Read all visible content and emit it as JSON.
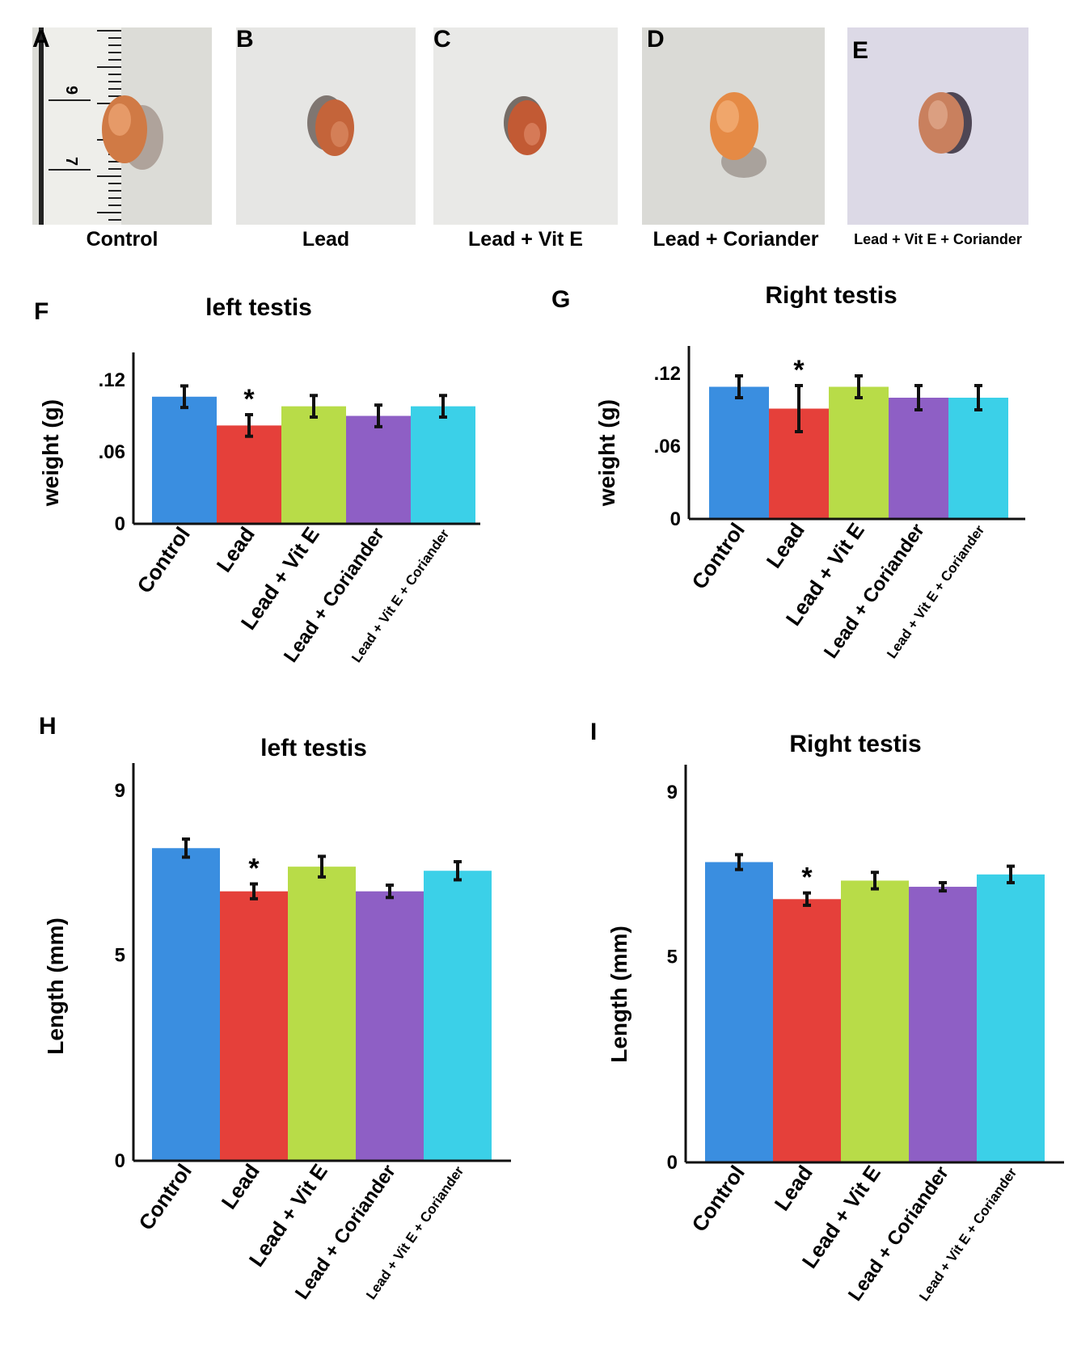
{
  "photos": [
    {
      "letter": "A",
      "caption": "Control",
      "bg": "#dcdcd7",
      "ruler_labels": [
        "9",
        "7"
      ]
    },
    {
      "letter": "B",
      "caption": "Lead",
      "bg": "#e6e6e4"
    },
    {
      "letter": "C",
      "caption": "Lead + Vit E",
      "bg": "#e9e9e7"
    },
    {
      "letter": "D",
      "caption": "Lead + Coriander",
      "bg": "#dadad6"
    },
    {
      "letter": "E",
      "caption": "Lead + Vit E + Coriander",
      "bg": "#dcd9e6"
    }
  ],
  "series_colors": [
    "#3a8ee0",
    "#e5403a",
    "#b8dc48",
    "#8e5fc5",
    "#3bd0e8"
  ],
  "chart_data": [
    {
      "panel": "F",
      "type": "bar",
      "title": "left testis",
      "ylabel": "weight (g)",
      "categories": [
        "Control",
        "Lead",
        "Lead + Vit E",
        "Lead + Coriander",
        "Lead + Vit E + Coriander"
      ],
      "values": [
        0.106,
        0.082,
        0.098,
        0.09,
        0.098
      ],
      "errors": [
        0.009,
        0.009,
        0.009,
        0.009,
        0.009
      ],
      "significant": [
        false,
        true,
        false,
        false,
        false
      ],
      "ylim": [
        0,
        0.12
      ],
      "ticks": [
        ".12",
        ".06",
        "0"
      ],
      "tick_values": [
        0.12,
        0.06,
        0
      ]
    },
    {
      "panel": "G",
      "type": "bar",
      "title": "Right testis",
      "ylabel": "weight (g)",
      "categories": [
        "Control",
        "Lead",
        "Lead + Vit E",
        "Lead + Coriander",
        "Lead + Vit E + Coriander"
      ],
      "values": [
        0.109,
        0.091,
        0.109,
        0.1,
        0.1
      ],
      "errors": [
        0.009,
        0.019,
        0.009,
        0.01,
        0.01
      ],
      "significant": [
        false,
        true,
        false,
        false,
        false
      ],
      "ylim": [
        0,
        0.12
      ],
      "ticks": [
        ".12",
        ".06",
        "0"
      ],
      "tick_values": [
        0.12,
        0.06,
        0
      ]
    },
    {
      "panel": "H",
      "type": "bar",
      "title": "left testis",
      "ylabel": "Length (mm)",
      "categories": [
        "Control",
        "Lead",
        "Lead + Vit E",
        "Lead + Coriander",
        "Lead + Vit E + Coriander"
      ],
      "values": [
        7.6,
        6.55,
        7.15,
        6.55,
        7.05
      ],
      "errors": [
        0.22,
        0.18,
        0.25,
        0.15,
        0.22
      ],
      "significant": [
        false,
        true,
        false,
        false,
        false
      ],
      "ylim": [
        0,
        9
      ],
      "ticks": [
        "9",
        "5",
        "0"
      ],
      "tick_values": [
        9,
        5,
        0
      ]
    },
    {
      "panel": "I",
      "type": "bar",
      "title": "Right testis",
      "ylabel": "Length (mm)",
      "categories": [
        "Control",
        "Lead",
        "Lead + Vit E",
        "Lead + Coriander",
        "Lead + Vit E + Coriander"
      ],
      "values": [
        7.3,
        6.4,
        6.85,
        6.7,
        7.0
      ],
      "errors": [
        0.18,
        0.15,
        0.2,
        0.1,
        0.2
      ],
      "significant": [
        false,
        true,
        false,
        false,
        false
      ],
      "ylim": [
        0,
        9
      ],
      "ticks": [
        "9",
        "5",
        "0"
      ],
      "tick_values": [
        9,
        5,
        0
      ]
    }
  ],
  "significance_marker": "*"
}
